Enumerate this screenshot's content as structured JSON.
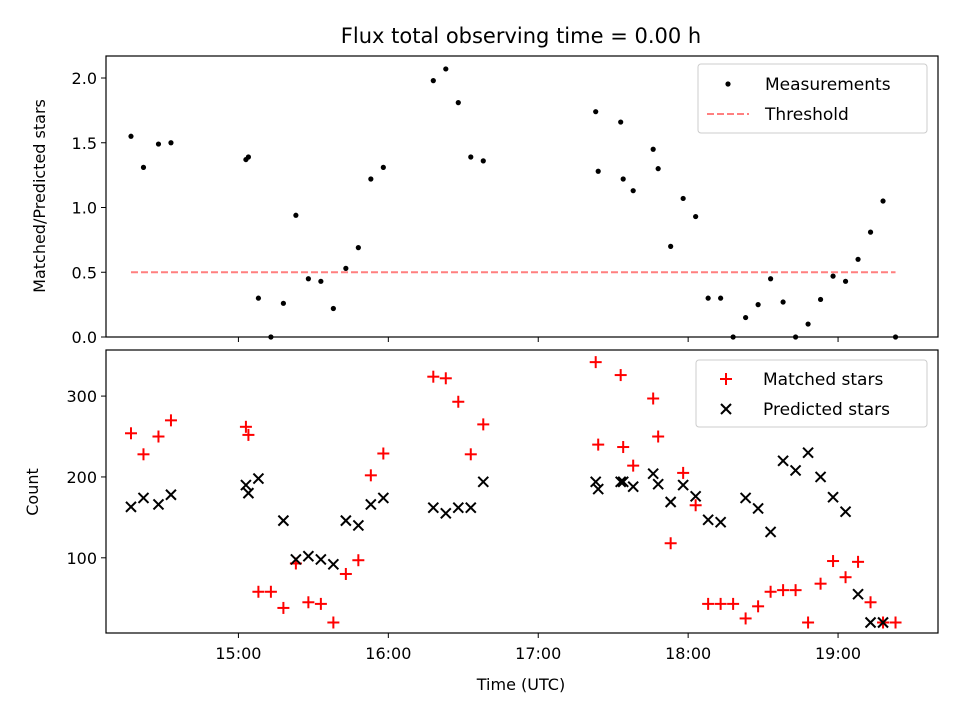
{
  "chart_data": [
    {
      "type": "scatter",
      "title": "Flux total observing time = 0.00 h",
      "xlabel": "",
      "ylabel": "Matched/Predicted stars",
      "ylim": [
        0,
        2.17
      ],
      "yticks": [
        "0.0",
        "0.5",
        "1.0",
        "1.5",
        "2.0"
      ],
      "ytick_values": [
        0,
        0.5,
        1.0,
        1.5,
        2.0
      ],
      "grid": false,
      "legend_position": "top-right",
      "series": [
        {
          "name": "Measurements",
          "marker": "dot",
          "color": "#000000",
          "x": [
            "14:17",
            "14:22",
            "14:28",
            "14:33",
            "15:03",
            "15:04",
            "15:08",
            "15:13",
            "15:18",
            "15:23",
            "15:28",
            "15:33",
            "15:38",
            "15:43",
            "15:48",
            "15:53",
            "15:58",
            "16:18",
            "16:23",
            "16:28",
            "16:33",
            "16:38",
            "17:23",
            "17:24",
            "17:33",
            "17:34",
            "17:38",
            "17:46",
            "17:48",
            "17:53",
            "17:58",
            "18:03",
            "18:08",
            "18:13",
            "18:18",
            "18:23",
            "18:28",
            "18:33",
            "18:38",
            "18:43",
            "18:48",
            "18:53",
            "18:58",
            "19:03",
            "19:08",
            "19:13",
            "19:18",
            "19:23"
          ],
          "y": [
            1.55,
            1.31,
            1.49,
            1.5,
            1.37,
            1.39,
            0.3,
            0.0,
            0.26,
            0.94,
            0.45,
            0.43,
            0.22,
            0.53,
            0.69,
            1.22,
            1.31,
            1.98,
            2.07,
            1.81,
            1.39,
            1.36,
            1.74,
            1.28,
            1.66,
            1.22,
            1.13,
            1.45,
            1.3,
            0.7,
            1.07,
            0.93,
            0.3,
            0.3,
            0.0,
            0.15,
            0.25,
            0.45,
            0.27,
            0.0,
            0.1,
            0.29,
            0.47,
            0.43,
            0.6,
            0.81,
            1.05,
            0.0
          ]
        },
        {
          "name": "Threshold",
          "style": "dashed",
          "color": "#ff7f7f",
          "x": [
            "14:17",
            "19:23"
          ],
          "y": [
            0.5,
            0.5
          ]
        }
      ]
    },
    {
      "type": "scatter",
      "title": "",
      "xlabel": "Time (UTC)",
      "ylabel": "Count",
      "ylim": [
        7,
        357
      ],
      "yticks": [
        "100",
        "200",
        "300"
      ],
      "ytick_values": [
        100,
        200,
        300
      ],
      "xticks": [
        "15:00",
        "16:00",
        "17:00",
        "18:00",
        "19:00"
      ],
      "grid": false,
      "legend_position": "top-right",
      "series": [
        {
          "name": "Matched stars",
          "marker": "plus",
          "color": "#ff0000",
          "x": [
            "14:17",
            "14:22",
            "14:28",
            "14:33",
            "15:03",
            "15:04",
            "15:08",
            "15:13",
            "15:18",
            "15:23",
            "15:28",
            "15:33",
            "15:38",
            "15:43",
            "15:48",
            "15:53",
            "15:58",
            "16:18",
            "16:23",
            "16:28",
            "16:33",
            "16:38",
            "17:23",
            "17:24",
            "17:33",
            "17:34",
            "17:38",
            "17:46",
            "17:48",
            "17:53",
            "17:58",
            "18:03",
            "18:08",
            "18:13",
            "18:18",
            "18:23",
            "18:28",
            "18:33",
            "18:38",
            "18:43",
            "18:48",
            "18:53",
            "18:58",
            "19:03",
            "19:08",
            "19:13",
            "19:18",
            "19:23"
          ],
          "y": [
            254,
            228,
            250,
            270,
            262,
            252,
            58,
            58,
            38,
            93,
            45,
            43,
            20,
            80,
            97,
            202,
            229,
            324,
            322,
            293,
            228,
            265,
            342,
            240,
            326,
            237,
            214,
            297,
            250,
            118,
            205,
            165,
            43,
            43,
            43,
            25,
            40,
            58,
            60,
            60,
            20,
            68,
            96,
            76,
            95,
            45,
            20,
            20
          ]
        },
        {
          "name": "Predicted stars",
          "marker": "x",
          "color": "#000000",
          "x": [
            "14:17",
            "14:22",
            "14:28",
            "14:33",
            "15:03",
            "15:04",
            "15:08",
            "15:18",
            "15:23",
            "15:28",
            "15:33",
            "15:38",
            "15:43",
            "15:48",
            "15:53",
            "15:58",
            "16:18",
            "16:23",
            "16:28",
            "16:33",
            "16:38",
            "17:23",
            "17:24",
            "17:33",
            "17:34",
            "17:38",
            "17:46",
            "17:48",
            "17:53",
            "17:58",
            "18:03",
            "18:08",
            "18:13",
            "18:23",
            "18:28",
            "18:33",
            "18:38",
            "18:43",
            "18:48",
            "18:53",
            "18:58",
            "19:03",
            "19:08",
            "19:13",
            "19:18"
          ],
          "y": [
            163,
            174,
            166,
            178,
            190,
            180,
            198,
            146,
            98,
            102,
            98,
            92,
            146,
            140,
            166,
            174,
            162,
            155,
            162,
            162,
            194,
            194,
            185,
            194,
            194,
            188,
            204,
            191,
            169,
            190,
            176,
            147,
            144,
            174,
            161,
            132,
            220,
            208,
            230,
            200,
            175,
            157,
            55,
            20,
            20
          ]
        }
      ]
    }
  ]
}
